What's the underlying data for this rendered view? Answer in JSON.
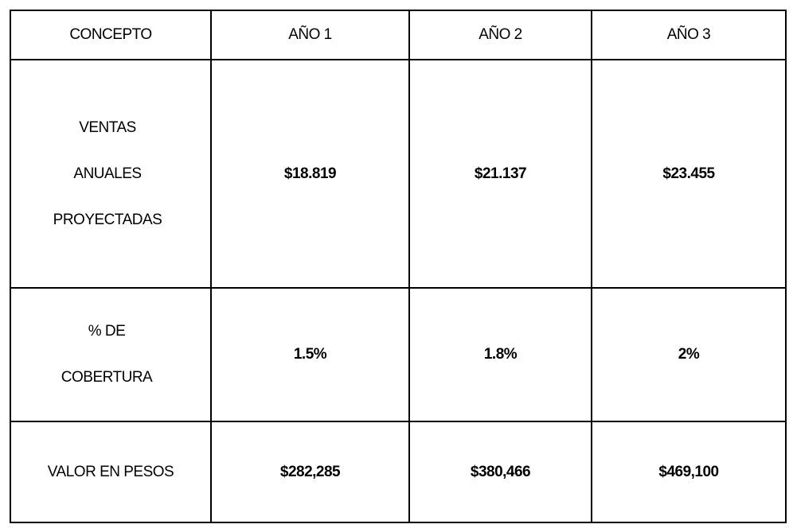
{
  "table": {
    "headers": [
      "CONCEPTO",
      "AÑO 1",
      "AÑO 2",
      "AÑO 3"
    ],
    "rows": [
      {
        "concept_lines": [
          "VENTAS",
          "ANUALES",
          "PROYECTADAS"
        ],
        "values": [
          "$18.819",
          "$21.137",
          "$23.455"
        ]
      },
      {
        "concept_lines": [
          "% DE",
          "COBERTURA"
        ],
        "values": [
          "1.5%",
          "1.8%",
          "2%"
        ]
      },
      {
        "concept_lines": [
          "VALOR EN PESOS"
        ],
        "values": [
          "$282,285",
          "$380,466",
          "$469,100"
        ]
      }
    ]
  }
}
